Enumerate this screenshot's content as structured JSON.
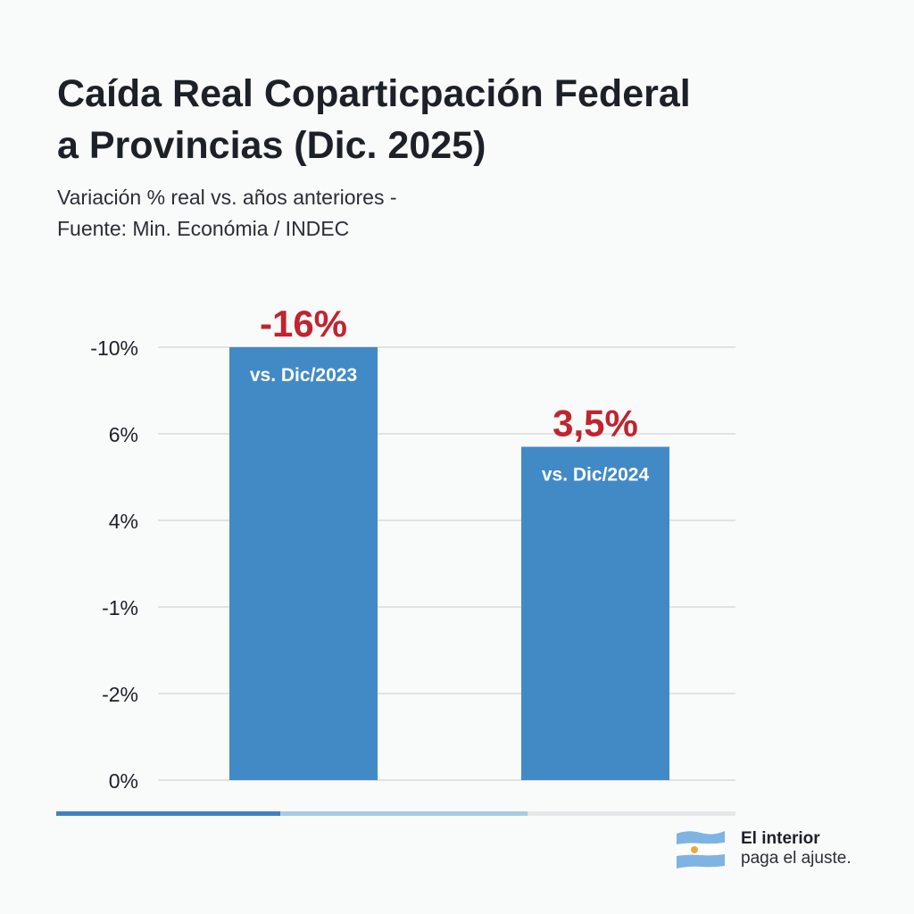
{
  "header": {
    "title_line1": "Caída Real Coparticpación Federal",
    "title_line2": "a Provincias (Dic. 2025)",
    "subtitle_line1": "Variación % real vs. años anteriores -",
    "subtitle_line2": "Fuente: Min. Económia / INDEC"
  },
  "colors": {
    "bar": "#428ac6",
    "value_label": "#c0242f",
    "bar_label": "#ffffff",
    "grid": "#d9dadb",
    "tick_text": "#1c2128"
  },
  "chart_data": {
    "type": "bar",
    "title": "Caída Real Coparticpación Federal a Provincias (Dic. 2025)",
    "subtitle": "Variación % real vs. años anteriores - Fuente: Min. Económia / INDEC",
    "xlabel": "",
    "ylabel": "",
    "grid": true,
    "legend": "none",
    "y_ticks_bottom_to_top": [
      "0%",
      "-2%",
      "-1%",
      "4%",
      "6%",
      "-10%"
    ],
    "y_scale_note": "tick labels are non-monotonic; bar heights expressed in tick steps from the bottom gridline",
    "categories": [
      "vs. Dic/2023",
      "vs. Dic/2024"
    ],
    "values": [
      -16,
      3.5
    ],
    "value_labels": [
      "-16%",
      "3,5%"
    ],
    "bar_height_in_tick_steps": [
      5.0,
      3.85
    ]
  },
  "footer": {
    "progress_segments": [
      {
        "name": "segment-dark",
        "share": 0.33,
        "color": "#3f82c2"
      },
      {
        "name": "segment-light",
        "share": 0.36,
        "color": "#a9cbe8"
      },
      {
        "name": "segment-gray",
        "share": 0.31,
        "color": "#e6e7e8"
      }
    ],
    "brand_line1": "El interior",
    "brand_line2": "paga el ajuste.",
    "brand_icon": "argentina-flag-icon"
  }
}
